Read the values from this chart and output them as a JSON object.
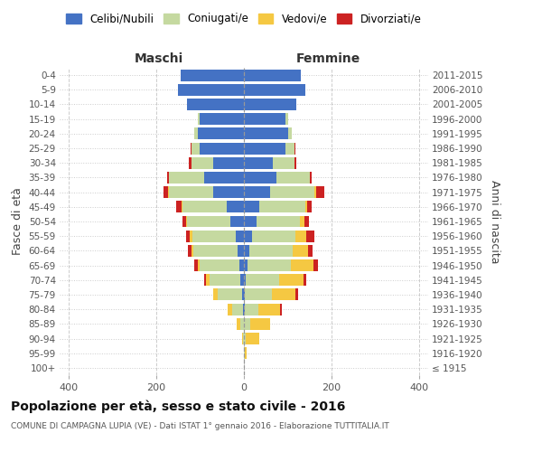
{
  "age_groups": [
    "100+",
    "95-99",
    "90-94",
    "85-89",
    "80-84",
    "75-79",
    "70-74",
    "65-69",
    "60-64",
    "55-59",
    "50-54",
    "45-49",
    "40-44",
    "35-39",
    "30-34",
    "25-29",
    "20-24",
    "15-19",
    "10-14",
    "5-9",
    "0-4"
  ],
  "birth_years": [
    "≤ 1915",
    "1916-1920",
    "1921-1925",
    "1926-1930",
    "1931-1935",
    "1936-1940",
    "1941-1945",
    "1946-1950",
    "1951-1955",
    "1956-1960",
    "1961-1965",
    "1966-1970",
    "1971-1975",
    "1976-1980",
    "1981-1985",
    "1986-1990",
    "1991-1995",
    "1996-2000",
    "2001-2005",
    "2006-2010",
    "2011-2015"
  ],
  "maschi": {
    "celibi": [
      0,
      0,
      0,
      0,
      2,
      5,
      8,
      10,
      15,
      18,
      30,
      40,
      70,
      90,
      70,
      100,
      105,
      100,
      130,
      150,
      145
    ],
    "coniugati": [
      0,
      0,
      2,
      8,
      25,
      55,
      70,
      90,
      100,
      100,
      100,
      100,
      100,
      80,
      50,
      20,
      8,
      5,
      0,
      0,
      0
    ],
    "vedovi": [
      0,
      0,
      2,
      8,
      10,
      10,
      8,
      5,
      5,
      5,
      2,
      2,
      2,
      0,
      0,
      0,
      0,
      0,
      0,
      0,
      0
    ],
    "divorziati": [
      0,
      0,
      0,
      0,
      0,
      0,
      5,
      8,
      8,
      8,
      8,
      12,
      12,
      5,
      5,
      2,
      0,
      0,
      0,
      0,
      0
    ]
  },
  "femmine": {
    "nubili": [
      0,
      0,
      0,
      0,
      2,
      3,
      5,
      8,
      12,
      18,
      28,
      35,
      60,
      75,
      65,
      95,
      100,
      95,
      120,
      140,
      130
    ],
    "coniugate": [
      0,
      2,
      5,
      15,
      30,
      60,
      75,
      100,
      100,
      100,
      100,
      105,
      100,
      75,
      50,
      20,
      10,
      5,
      0,
      0,
      0
    ],
    "vedove": [
      0,
      5,
      30,
      45,
      50,
      55,
      55,
      50,
      35,
      25,
      10,
      5,
      5,
      0,
      0,
      0,
      0,
      0,
      0,
      0,
      0
    ],
    "divorziate": [
      0,
      0,
      0,
      0,
      5,
      5,
      8,
      10,
      10,
      18,
      10,
      10,
      18,
      5,
      5,
      2,
      0,
      0,
      0,
      0,
      0
    ]
  },
  "colors": {
    "celibi": "#4472c4",
    "coniugati": "#c5d9a0",
    "vedovi": "#f5c842",
    "divorziati": "#cc2222"
  },
  "xlim": 420,
  "title": "Popolazione per età, sesso e stato civile - 2016",
  "subtitle": "COMUNE DI CAMPAGNA LUPIA (VE) - Dati ISTAT 1° gennaio 2016 - Elaborazione TUTTITALIA.IT",
  "ylabel_left": "Fasce di età",
  "ylabel_right": "Anni di nascita",
  "legend_labels": [
    "Celibi/Nubili",
    "Coniugati/e",
    "Vedovi/e",
    "Divorziati/e"
  ],
  "maschi_label": "Maschi",
  "femmine_label": "Femmine",
  "xticks": [
    -400,
    -200,
    0,
    200,
    400
  ],
  "bg_color": "#ffffff",
  "grid_color": "#cccccc",
  "text_color": "#555555"
}
